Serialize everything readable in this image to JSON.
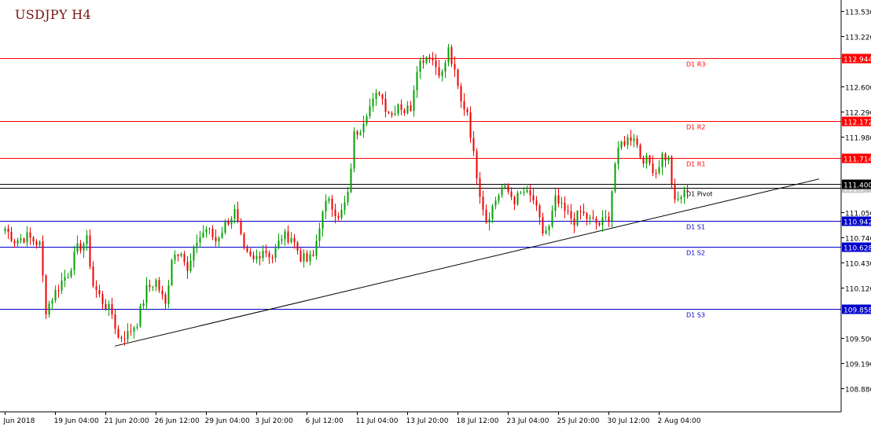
{
  "chart_data": {
    "type": "candlestick",
    "title": "USDJPY H4",
    "timeframe": "H4",
    "colors": {
      "up": "#00a000",
      "down": "#ee0000",
      "axis": "#000000",
      "resistance": "#ff0000",
      "support": "#0000cc",
      "pivot": "#000000",
      "current": "#000000"
    },
    "ylim": [
      108.6,
      113.65
    ],
    "y_ticks": [
      "113.530",
      "113.220",
      "112.600",
      "112.290",
      "111.980",
      "111.050",
      "110.740",
      "110.430",
      "110.120",
      "109.500",
      "109.190",
      "108.880"
    ],
    "x_ticks": [
      {
        "label": "Jun 2018",
        "bar": 0
      },
      {
        "label": "19 Jun 04:00",
        "bar": 16
      },
      {
        "label": "21 Jun 20:00",
        "bar": 32
      },
      {
        "label": "26 Jun 12:00",
        "bar": 48
      },
      {
        "label": "29 Jun 04:00",
        "bar": 64
      },
      {
        "label": "3 Jul 20:00",
        "bar": 80
      },
      {
        "label": "6 Jul 12:00",
        "bar": 96
      },
      {
        "label": "11 Jul 04:00",
        "bar": 112
      },
      {
        "label": "13 Jul 20:00",
        "bar": 128
      },
      {
        "label": "18 Jul 12:00",
        "bar": 144
      },
      {
        "label": "23 Jul 04:00",
        "bar": 160
      },
      {
        "label": "25 Jul 20:00",
        "bar": 176
      },
      {
        "label": "30 Jul 12:00",
        "bar": 192
      },
      {
        "label": "2 Aug 04:00",
        "bar": 208
      }
    ],
    "levels": [
      {
        "name": "D1 R3",
        "price": "112.944",
        "value": 112.944,
        "kind": "resistance"
      },
      {
        "name": "D1 R2",
        "price": "112.172",
        "value": 112.172,
        "kind": "resistance"
      },
      {
        "name": "D1 R1",
        "price": "111.714",
        "value": 111.714,
        "kind": "resistance"
      },
      {
        "name": "D1 Pivot",
        "price": "111.3__",
        "value": 111.35,
        "kind": "pivot"
      },
      {
        "name": "D1 S1",
        "price": "110.942",
        "value": 110.942,
        "kind": "support"
      },
      {
        "name": "D1 S2",
        "price": "110.628",
        "value": 110.628,
        "kind": "support"
      },
      {
        "name": "D1 S3",
        "price": "109.858",
        "value": 109.858,
        "kind": "support"
      }
    ],
    "current_price": {
      "price": "111.400",
      "value": 111.4
    },
    "trendline": {
      "from": {
        "bar": 35,
        "value": 109.4
      },
      "to": {
        "bar": 259,
        "value": 111.46
      }
    },
    "waypoints": [
      [
        0,
        110.85
      ],
      [
        3,
        110.7
      ],
      [
        7,
        110.75
      ],
      [
        11,
        110.65
      ],
      [
        13,
        109.85
      ],
      [
        15,
        110.0
      ],
      [
        18,
        110.2
      ],
      [
        20,
        110.3
      ],
      [
        23,
        110.6
      ],
      [
        26,
        110.7
      ],
      [
        28,
        110.15
      ],
      [
        31,
        109.95
      ],
      [
        34,
        109.8
      ],
      [
        36,
        109.5
      ],
      [
        39,
        109.55
      ],
      [
        42,
        109.7
      ],
      [
        45,
        110.1
      ],
      [
        48,
        110.2
      ],
      [
        51,
        109.9
      ],
      [
        53,
        110.5
      ],
      [
        56,
        110.6
      ],
      [
        58,
        110.3
      ],
      [
        61,
        110.7
      ],
      [
        64,
        110.85
      ],
      [
        67,
        110.7
      ],
      [
        70,
        110.9
      ],
      [
        73,
        111.05
      ],
      [
        76,
        110.55
      ],
      [
        79,
        110.45
      ],
      [
        82,
        110.6
      ],
      [
        85,
        110.5
      ],
      [
        88,
        110.75
      ],
      [
        91,
        110.75
      ],
      [
        94,
        110.5
      ],
      [
        96,
        110.45
      ],
      [
        98,
        110.5
      ],
      [
        100,
        110.9
      ],
      [
        103,
        111.25
      ],
      [
        106,
        110.95
      ],
      [
        109,
        111.25
      ],
      [
        111,
        112.0
      ],
      [
        113,
        112.1
      ],
      [
        115,
        112.3
      ],
      [
        117,
        112.4
      ],
      [
        119,
        112.55
      ],
      [
        121,
        112.35
      ],
      [
        123,
        112.25
      ],
      [
        125,
        112.4
      ],
      [
        127,
        112.3
      ],
      [
        129,
        112.35
      ],
      [
        131,
        112.85
      ],
      [
        133,
        112.95
      ],
      [
        135,
        113.0
      ],
      [
        137,
        112.85
      ],
      [
        139,
        112.75
      ],
      [
        141,
        113.05
      ],
      [
        143,
        112.75
      ],
      [
        145,
        112.4
      ],
      [
        147,
        112.3
      ],
      [
        149,
        111.75
      ],
      [
        151,
        111.3
      ],
      [
        153,
        110.95
      ],
      [
        156,
        111.2
      ],
      [
        158,
        111.35
      ],
      [
        160,
        111.3
      ],
      [
        162,
        111.2
      ],
      [
        165,
        111.3
      ],
      [
        168,
        111.2
      ],
      [
        171,
        110.8
      ],
      [
        173,
        110.85
      ],
      [
        175,
        111.2
      ],
      [
        178,
        111.05
      ],
      [
        181,
        110.95
      ],
      [
        183,
        111.05
      ],
      [
        186,
        110.95
      ],
      [
        189,
        110.9
      ],
      [
        192,
        111.0
      ],
      [
        194,
        111.65
      ],
      [
        196,
        111.9
      ],
      [
        198,
        111.95
      ],
      [
        200,
        112.0
      ],
      [
        202,
        111.75
      ],
      [
        205,
        111.65
      ],
      [
        207,
        111.55
      ],
      [
        209,
        111.75
      ],
      [
        211,
        111.7
      ],
      [
        213,
        111.15
      ],
      [
        215,
        111.25
      ],
      [
        217,
        111.3
      ]
    ]
  }
}
